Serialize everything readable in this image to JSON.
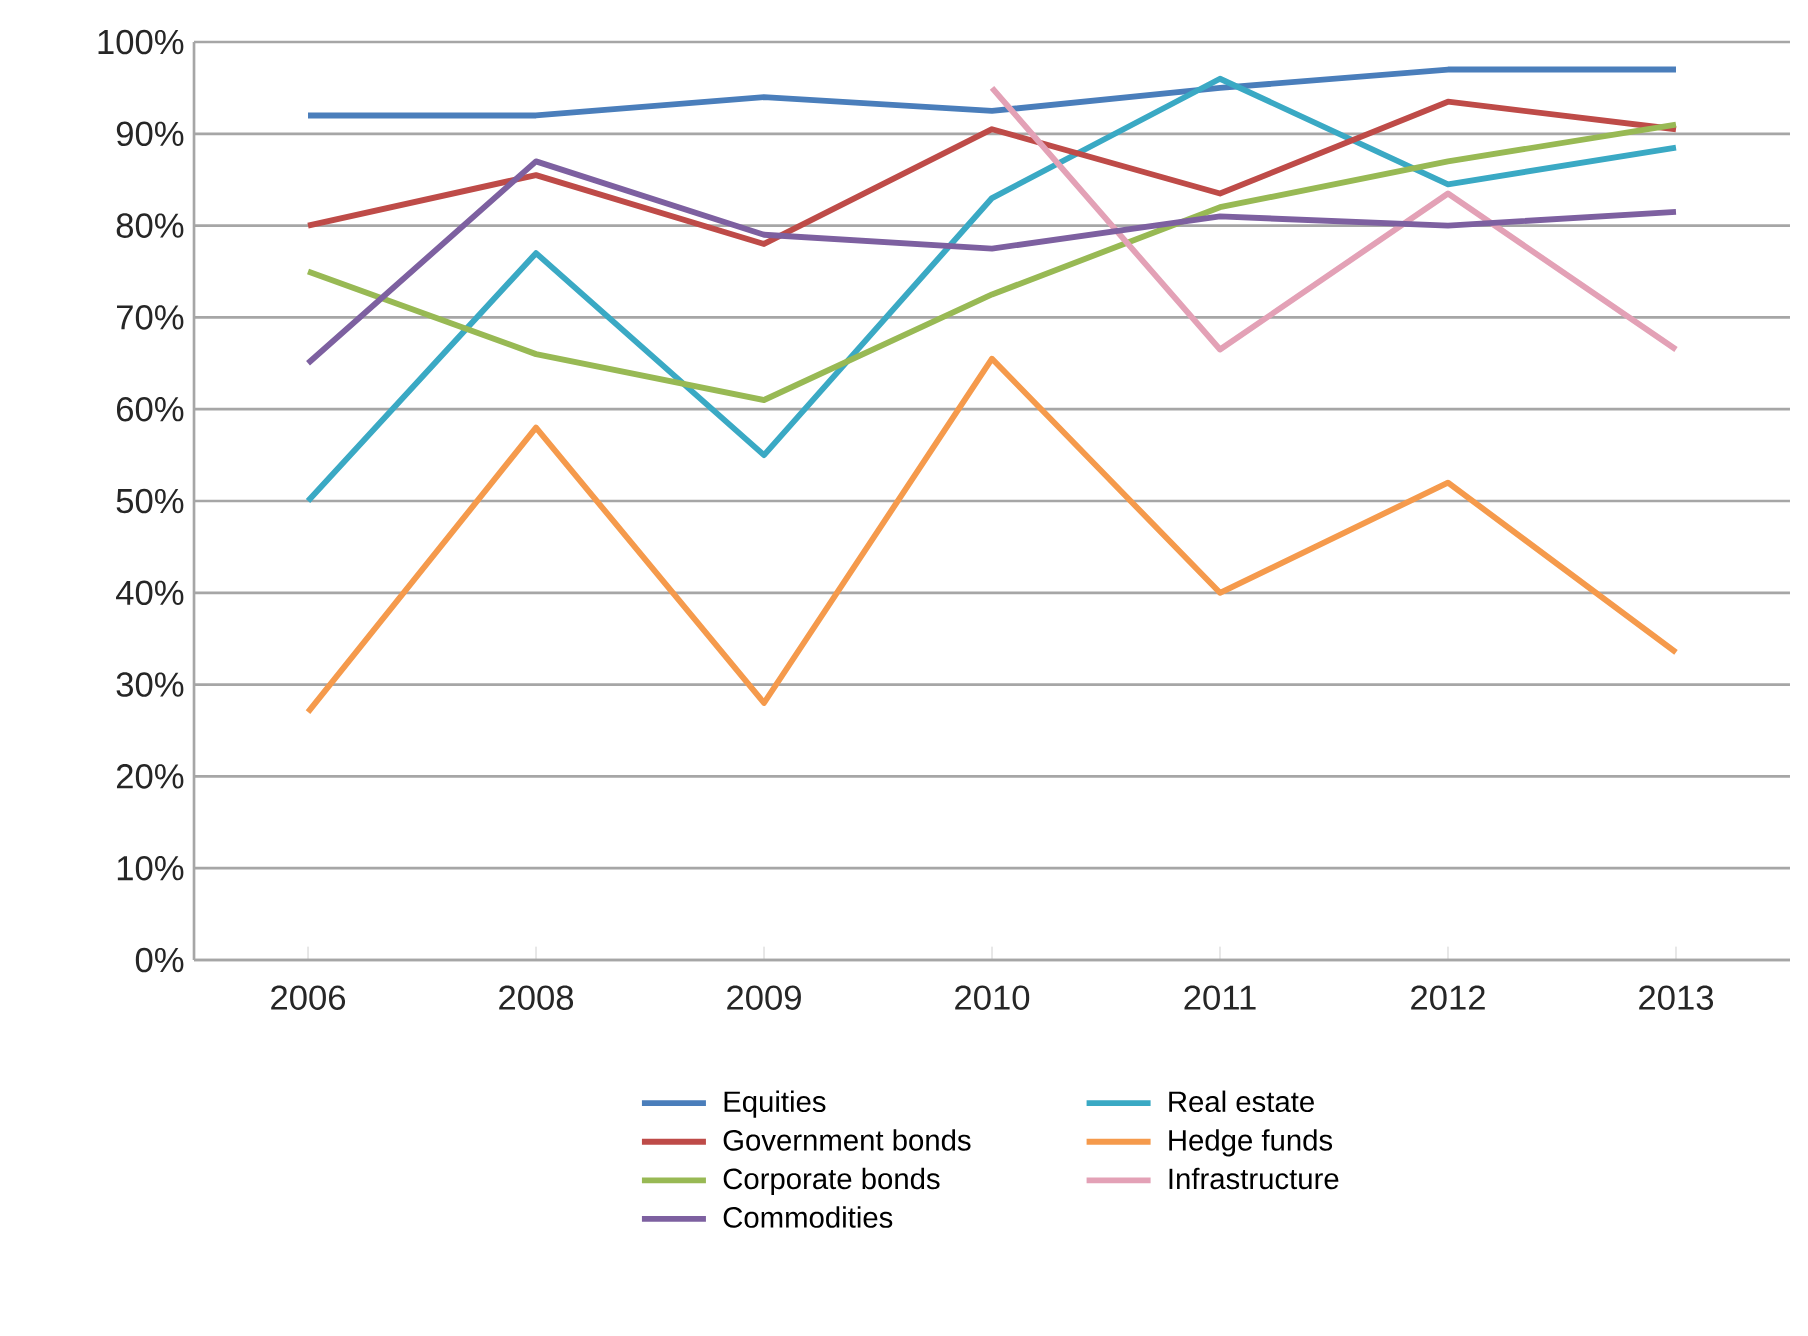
{
  "chart_data": {
    "type": "line",
    "categories": [
      "2006",
      "2008",
      "2009",
      "2010",
      "2011",
      "2012",
      "2013"
    ],
    "series": [
      {
        "name": "Equities",
        "color": "#4a7ebb",
        "values": [
          92,
          92,
          94,
          92.5,
          95,
          97,
          97
        ]
      },
      {
        "name": "Real estate",
        "color": "#3aa9c4",
        "values": [
          50,
          77,
          55,
          83,
          96,
          84.5,
          88.5
        ]
      },
      {
        "name": "Government bonds",
        "color": "#be4b48",
        "values": [
          80,
          85.5,
          78,
          90.5,
          83.5,
          93.5,
          90.5
        ]
      },
      {
        "name": "Hedge funds",
        "color": "#f59a4c",
        "values": [
          27,
          58,
          28,
          65.5,
          40,
          52,
          33.5
        ]
      },
      {
        "name": "Corporate bonds",
        "color": "#98b954",
        "values": [
          75,
          66,
          61,
          72.5,
          82,
          87,
          91
        ]
      },
      {
        "name": "Infrastructure",
        "color": "#e3a1b6",
        "values": [
          null,
          null,
          null,
          95,
          66.5,
          83.5,
          66.5
        ]
      },
      {
        "name": "Commodities",
        "color": "#7d60a0",
        "values": [
          65,
          87,
          79,
          77.5,
          81,
          80,
          81.5
        ]
      }
    ],
    "ylim": [
      0,
      100
    ],
    "yticks": [
      {
        "value": 0,
        "label": "0%"
      },
      {
        "value": 10,
        "label": "10%"
      },
      {
        "value": 20,
        "label": "20%"
      },
      {
        "value": 30,
        "label": "30%"
      },
      {
        "value": 40,
        "label": "40%"
      },
      {
        "value": 50,
        "label": "50%"
      },
      {
        "value": 60,
        "label": "60%"
      },
      {
        "value": 70,
        "label": "70%"
      },
      {
        "value": 80,
        "label": "80%"
      },
      {
        "value": 90,
        "label": "90%"
      },
      {
        "value": 100,
        "label": "100%"
      }
    ],
    "grid": "y",
    "legend": "bottom",
    "marker": "none",
    "line_style": "solid"
  }
}
